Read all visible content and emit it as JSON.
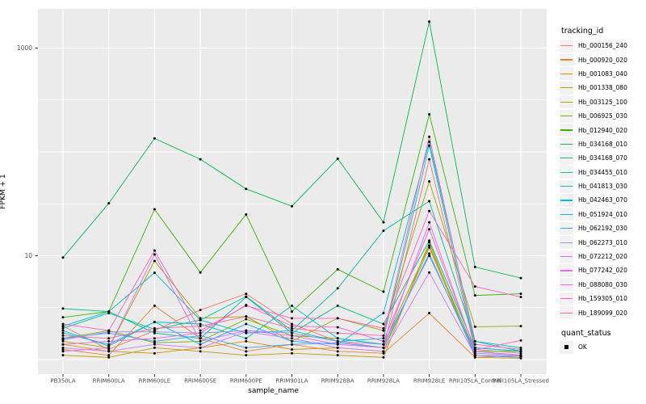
{
  "chart_data": {
    "type": "line",
    "title": "",
    "xlabel": "sample_name",
    "ylabel": "FPKM + 1",
    "y_scale": "log10",
    "ylim": [
      0.74,
      2400
    ],
    "grid": true,
    "legend_position": "right",
    "y_ticks": [
      {
        "value": 1000,
        "label": "1000"
      },
      {
        "value": 10,
        "label": "10"
      }
    ],
    "y_major_gridlines": [
      1,
      10,
      100,
      1000
    ],
    "y_minor_gridlines": [
      3.162,
      31.62,
      316.2
    ],
    "categories": [
      "PB350LA",
      "RRIM600LA",
      "RRIM600LE",
      "RRIM600SE",
      "RRIM600PE",
      "RRIM901LA",
      "RRIM928BA",
      "RRIM928LA",
      "RRIM928LE",
      "RRII105LA_Control",
      "RRII105LA_Stressed"
    ],
    "series": [
      {
        "name": "Hb_000156_240",
        "color": "#F8766D",
        "values": [
          2.1,
          1.25,
          1.9,
          3.0,
          4.3,
          2.2,
          1.5,
          1.3,
          85,
          1.25,
          1.15
        ]
      },
      {
        "name": "Hb_000920_020",
        "color": "#EA8331",
        "values": [
          1.25,
          1.1,
          3.3,
          1.6,
          1.2,
          1.4,
          1.2,
          1.15,
          2.8,
          1.05,
          1.1
        ]
      },
      {
        "name": "Hb_001083_040",
        "color": "#D89000",
        "values": [
          1.4,
          1.2,
          1.15,
          1.3,
          1.5,
          1.25,
          1.3,
          1.2,
          12,
          1.1,
          1.05
        ]
      },
      {
        "name": "Hb_001338_080",
        "color": "#C09B00",
        "values": [
          1.1,
          1.05,
          1.3,
          1.2,
          1.1,
          1.15,
          1.1,
          1.05,
          13.5,
          1.05,
          1.03
        ]
      },
      {
        "name": "Hb_003125_100",
        "color": "#A3A500",
        "values": [
          1.5,
          1.3,
          8.9,
          2.5,
          2.6,
          1.5,
          2.5,
          1.9,
          52,
          2.07,
          2.1
        ]
      },
      {
        "name": "Hb_006925_030",
        "color": "#7CAE00",
        "values": [
          1.6,
          1.9,
          1.45,
          1.5,
          2.45,
          1.7,
          1.6,
          1.4,
          12.5,
          1.2,
          1.2
        ]
      },
      {
        "name": "Hb_012940_020",
        "color": "#39B600",
        "values": [
          2.55,
          2.9,
          28,
          6.9,
          25,
          2.9,
          7.4,
          4.5,
          230,
          4.15,
          4.3
        ]
      },
      {
        "name": "Hb_034168_010",
        "color": "#00BB4E",
        "values": [
          9.6,
          32,
          135,
          85,
          44,
          30,
          86,
          21,
          1800,
          7.8,
          6.1
        ]
      },
      {
        "name": "Hb_034168_070",
        "color": "#00BF7D",
        "values": [
          3.1,
          2.9,
          1.8,
          1.6,
          4.0,
          1.8,
          3.3,
          2.2,
          14,
          1.3,
          1.2
        ]
      },
      {
        "name": "Hb_034455_010",
        "color": "#00C1A3",
        "values": [
          2.0,
          2.8,
          1.95,
          2.4,
          4.05,
          1.9,
          4.85,
          17.4,
          33.5,
          1.5,
          1.3
        ]
      },
      {
        "name": "Hb_041813_030",
        "color": "#00BFC4",
        "values": [
          1.8,
          1.4,
          2.3,
          2.2,
          1.6,
          3.3,
          1.6,
          1.4,
          10,
          1.2,
          1.1
        ]
      },
      {
        "name": "Hb_042463_070",
        "color": "#00BAE0",
        "values": [
          2.1,
          2.9,
          6.85,
          2.4,
          1.8,
          1.9,
          1.5,
          1.6,
          115,
          1.3,
          1.2
        ]
      },
      {
        "name": "Hb_051924_010",
        "color": "#00B0F6",
        "values": [
          1.9,
          1.35,
          2.3,
          1.4,
          2.2,
          1.5,
          1.4,
          2.8,
          125,
          1.5,
          1.2
        ]
      },
      {
        "name": "Hb_062192_030",
        "color": "#35A2FF",
        "values": [
          1.6,
          1.8,
          1.5,
          1.7,
          1.3,
          1.4,
          1.45,
          1.3,
          10.5,
          1.1,
          1.05
        ]
      },
      {
        "name": "Hb_062273_010",
        "color": "#9590FF",
        "values": [
          1.55,
          1.85,
          1.85,
          1.8,
          1.9,
          1.8,
          1.5,
          1.4,
          10,
          1.15,
          1.1
        ]
      },
      {
        "name": "Hb_072212_020",
        "color": "#C77CFF",
        "values": [
          1.3,
          1.2,
          1.4,
          1.3,
          1.85,
          1.6,
          1.3,
          1.2,
          6.9,
          1.1,
          1.08
        ]
      },
      {
        "name": "Hb_077242_020",
        "color": "#E76BF3",
        "values": [
          1.2,
          1.3,
          10.3,
          1.5,
          1.9,
          1.7,
          1.4,
          1.3,
          21,
          1.2,
          1.1
        ]
      },
      {
        "name": "Hb_088080_030",
        "color": "#FA62DB",
        "values": [
          1.4,
          1.5,
          1.6,
          1.8,
          3.35,
          2.1,
          2.05,
          1.5,
          18,
          1.24,
          1.53
        ]
      },
      {
        "name": "Hb_159305_010",
        "color": "#FF61C9",
        "values": [
          2.2,
          1.9,
          11.2,
          1.9,
          3.3,
          2.5,
          2.5,
          2.0,
          27,
          5.05,
          4.0
        ]
      },
      {
        "name": "Hb_189099_020",
        "color": "#FF68A1",
        "values": [
          1.7,
          1.6,
          2.0,
          2.1,
          2.6,
          2.0,
          1.8,
          1.7,
          140,
          1.4,
          1.25
        ]
      }
    ]
  },
  "legend": {
    "tracking_title": "tracking_id",
    "quant_title": "quant_status",
    "quant_items": [
      {
        "label": "OK",
        "marker": "black-square-point"
      }
    ]
  },
  "colors": {
    "panel_bg": "#EBEBEB",
    "gridline": "#FFFFFF",
    "axis_text": "#4D4D4D",
    "tick": "#333333",
    "point": "#000000",
    "legend_key_bg": "#F2F2F2"
  }
}
